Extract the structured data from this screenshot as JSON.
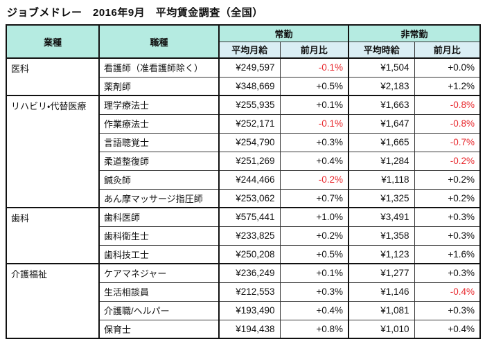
{
  "page_title": "ジョブメドレー　2016年9月　平均賃金調査（全国）",
  "colors": {
    "header_aqua": "#b5ebe1",
    "header_pale_blue": "#daeef4",
    "negative_value_red": "#e8282d",
    "border_dark": "#111111"
  },
  "table": {
    "headers": {
      "industry": "業種",
      "occupation": "職種",
      "fulltime_group": "常勤",
      "parttime_group": "非常勤",
      "monthly_salary": "平均月給",
      "monthly_mom": "前月比",
      "hourly_wage": "平均時給",
      "hourly_mom": "前月比"
    },
    "groups": [
      {
        "industry": "医科",
        "rows": [
          {
            "occupation": "看護師（准看護師除く）",
            "monthly": "¥249,597",
            "monthly_mom": "-0.1%",
            "hourly": "¥1,504",
            "hourly_mom": "+0.0%"
          },
          {
            "occupation": "薬剤師",
            "monthly": "¥348,669",
            "monthly_mom": "+0.5%",
            "hourly": "¥2,183",
            "hourly_mom": "+1.2%"
          }
        ]
      },
      {
        "industry": "リハビリ・代替医療",
        "rows": [
          {
            "occupation": "理学療法士",
            "monthly": "¥255,935",
            "monthly_mom": "+0.1%",
            "hourly": "¥1,663",
            "hourly_mom": "-0.8%"
          },
          {
            "occupation": "作業療法士",
            "monthly": "¥252,171",
            "monthly_mom": "-0.1%",
            "hourly": "¥1,647",
            "hourly_mom": "-0.8%"
          },
          {
            "occupation": "言語聴覚士",
            "monthly": "¥254,790",
            "monthly_mom": "+0.3%",
            "hourly": "¥1,665",
            "hourly_mom": "-0.7%"
          },
          {
            "occupation": "柔道整復師",
            "monthly": "¥251,269",
            "monthly_mom": "+0.4%",
            "hourly": "¥1,284",
            "hourly_mom": "-0.2%"
          },
          {
            "occupation": "鍼灸師",
            "monthly": "¥244,466",
            "monthly_mom": "-0.2%",
            "hourly": "¥1,118",
            "hourly_mom": "+0.2%"
          },
          {
            "occupation": "あん摩マッサージ指圧師",
            "monthly": "¥253,062",
            "monthly_mom": "+0.7%",
            "hourly": "¥1,325",
            "hourly_mom": "+0.2%"
          }
        ]
      },
      {
        "industry": "歯科",
        "rows": [
          {
            "occupation": "歯科医師",
            "monthly": "¥575,441",
            "monthly_mom": "+1.0%",
            "hourly": "¥3,491",
            "hourly_mom": "+0.3%"
          },
          {
            "occupation": "歯科衛生士",
            "monthly": "¥233,825",
            "monthly_mom": "+0.2%",
            "hourly": "¥1,358",
            "hourly_mom": "+0.3%"
          },
          {
            "occupation": "歯科技工士",
            "monthly": "¥250,208",
            "monthly_mom": "+0.5%",
            "hourly": "¥1,123",
            "hourly_mom": "+1.6%"
          }
        ]
      },
      {
        "industry": "介護福祉",
        "rows": [
          {
            "occupation": "ケアマネジャー",
            "monthly": "¥236,249",
            "monthly_mom": "+0.1%",
            "hourly": "¥1,277",
            "hourly_mom": "+0.3%"
          },
          {
            "occupation": "生活相談員",
            "monthly": "¥212,553",
            "monthly_mom": "+0.3%",
            "hourly": "¥1,146",
            "hourly_mom": "-0.4%"
          },
          {
            "occupation": "介護職/ヘルパー",
            "monthly": "¥193,490",
            "monthly_mom": "+0.4%",
            "hourly": "¥1,081",
            "hourly_mom": "+0.3%"
          },
          {
            "occupation": "保育士",
            "monthly": "¥194,438",
            "monthly_mom": "+0.8%",
            "hourly": "¥1,010",
            "hourly_mom": "+0.4%"
          }
        ]
      }
    ]
  }
}
